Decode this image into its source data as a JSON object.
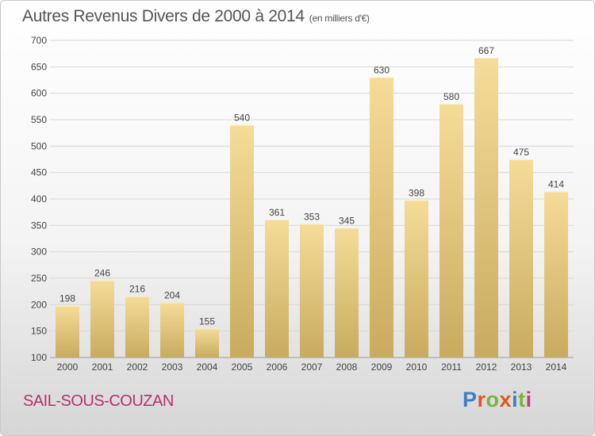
{
  "header": {
    "title": "Autres Revenus Divers de 2000 à 2014",
    "unit": "(en milliers d'€)"
  },
  "footer": {
    "place": "SAIL-SOUS-COUZAN",
    "brand": "Proxiti",
    "brand_colors": [
      "#3a7fc4",
      "#e0571c",
      "#7ab33c",
      "#e0571c",
      "#3a7fc4",
      "#7ab33c",
      "#c23b7a"
    ]
  },
  "colors": {
    "bar_light": "#f5dc98",
    "bar_dark": "#c8ab5e",
    "grid": "#d8d8d8",
    "axis_text": "#444444",
    "title": "#555555",
    "place": "#b6306b"
  },
  "chart_data": {
    "type": "bar",
    "categories": [
      "2000",
      "2001",
      "2002",
      "2003",
      "2004",
      "2005",
      "2006",
      "2007",
      "2008",
      "2009",
      "2010",
      "2011",
      "2012",
      "2013",
      "2014"
    ],
    "values": [
      198,
      246,
      216,
      204,
      155,
      540,
      361,
      353,
      345,
      630,
      398,
      580,
      667,
      475,
      414
    ],
    "title": "Autres Revenus Divers de 2000 à 2014",
    "subtitle": "(en milliers d'€)",
    "xlabel": "",
    "ylabel": "",
    "ylim": [
      100,
      700
    ],
    "yticks": [
      100,
      150,
      200,
      250,
      300,
      350,
      400,
      450,
      500,
      550,
      600,
      650,
      700
    ],
    "grid": true,
    "data_labels": true
  }
}
